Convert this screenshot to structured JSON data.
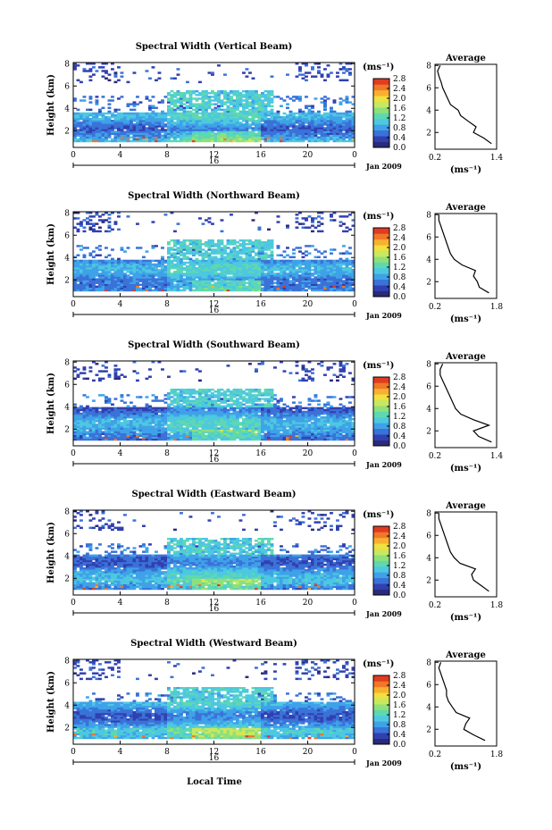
{
  "chart_data": {
    "type": "heatmap",
    "x_axis": {
      "label": "Local Time",
      "range": [
        0,
        24
      ],
      "ticks": [
        "0",
        "4",
        "8",
        "12",
        "16",
        "20",
        "0"
      ],
      "day_label": "16",
      "date_label": "Jan 2009"
    },
    "y_axis": {
      "label": "Height (km)",
      "range": [
        0.5,
        8.1
      ],
      "ticks": [
        "2",
        "4",
        "6",
        "8"
      ]
    },
    "colorbar": {
      "unit": "(ms⁻¹)",
      "range": [
        0.0,
        2.8
      ],
      "ticks": [
        "2.8",
        "2.4",
        "2.0",
        "1.6",
        "1.2",
        "0.8",
        "0.4",
        "0.0"
      ],
      "colors": [
        "#2a2a7a",
        "#3140b0",
        "#3a72d8",
        "#3fa2e8",
        "#4dc8e0",
        "#5ed8b0",
        "#8fe07a",
        "#c8e860",
        "#f0e040",
        "#f8b030",
        "#f07828",
        "#e03c20"
      ]
    },
    "profile_axis": {
      "title": "Average",
      "xlabel": "(ms⁻¹)",
      "yticks": [
        "2",
        "4",
        "6",
        "8"
      ],
      "ylim": [
        0.5,
        8.1
      ]
    },
    "panels": [
      {
        "title": "Spectral Width (Vertical Beam)",
        "profile_xticks": [
          "0.2",
          "1.4"
        ],
        "profile_xlim": [
          0.2,
          1.4
        ],
        "heights": [
          1.0,
          1.5,
          2.0,
          2.5,
          3.0,
          3.5,
          4.0,
          4.5,
          5.0,
          5.5,
          6.0,
          6.5,
          7.0,
          7.5,
          8.0
        ],
        "average": [
          1.3,
          1.15,
          0.95,
          1.0,
          0.85,
          0.7,
          0.65,
          0.5,
          0.45,
          0.4,
          0.35,
          0.32,
          0.28,
          0.25,
          0.3
        ]
      },
      {
        "title": "Spectral Width (Northward Beam)",
        "profile_xticks": [
          "0.2",
          "1.8"
        ],
        "profile_xlim": [
          0.2,
          1.8
        ],
        "heights": [
          1.0,
          1.5,
          2.0,
          2.5,
          3.0,
          3.5,
          4.0,
          4.5,
          5.0,
          5.5,
          6.0,
          6.5,
          7.0,
          7.5,
          8.0
        ],
        "average": [
          1.6,
          1.35,
          1.3,
          1.2,
          1.25,
          0.9,
          0.7,
          0.6,
          0.55,
          0.5,
          0.45,
          0.4,
          0.35,
          0.3,
          0.3
        ]
      },
      {
        "title": "Spectral Width (Southward Beam)",
        "profile_xticks": [
          "0.2",
          "1.4"
        ],
        "profile_xlim": [
          0.2,
          1.4
        ],
        "heights": [
          1.0,
          1.5,
          2.0,
          2.5,
          3.0,
          3.5,
          4.0,
          4.5,
          5.0,
          5.5,
          6.0,
          6.5,
          7.0,
          7.5,
          8.0
        ],
        "average": [
          1.3,
          1.05,
          0.95,
          1.25,
          0.95,
          0.7,
          0.6,
          0.55,
          0.5,
          0.45,
          0.4,
          0.35,
          0.3,
          0.3,
          0.35
        ]
      },
      {
        "title": "Spectral Width (Eastward Beam)",
        "profile_xticks": [
          "0.2",
          "1.8"
        ],
        "profile_xlim": [
          0.2,
          1.8
        ],
        "heights": [
          1.0,
          1.5,
          2.0,
          2.5,
          3.0,
          3.5,
          4.0,
          4.5,
          5.0,
          5.5,
          6.0,
          6.5,
          7.0,
          7.5,
          8.0
        ],
        "average": [
          1.6,
          1.4,
          1.2,
          1.15,
          1.25,
          0.85,
          0.7,
          0.6,
          0.55,
          0.5,
          0.45,
          0.4,
          0.35,
          0.3,
          0.3
        ]
      },
      {
        "title": "Spectral Width (Westward Beam)",
        "profile_xticks": [
          "0.2",
          "1.8"
        ],
        "profile_xlim": [
          0.2,
          1.8
        ],
        "heights": [
          1.0,
          1.5,
          2.0,
          2.5,
          3.0,
          3.5,
          4.0,
          4.5,
          5.0,
          5.5,
          6.0,
          6.5,
          7.0,
          7.5,
          8.0
        ],
        "average": [
          1.5,
          1.2,
          0.95,
          1.0,
          1.1,
          0.75,
          0.65,
          0.55,
          0.5,
          0.5,
          0.45,
          0.4,
          0.35,
          0.3,
          0.35
        ]
      }
    ]
  }
}
